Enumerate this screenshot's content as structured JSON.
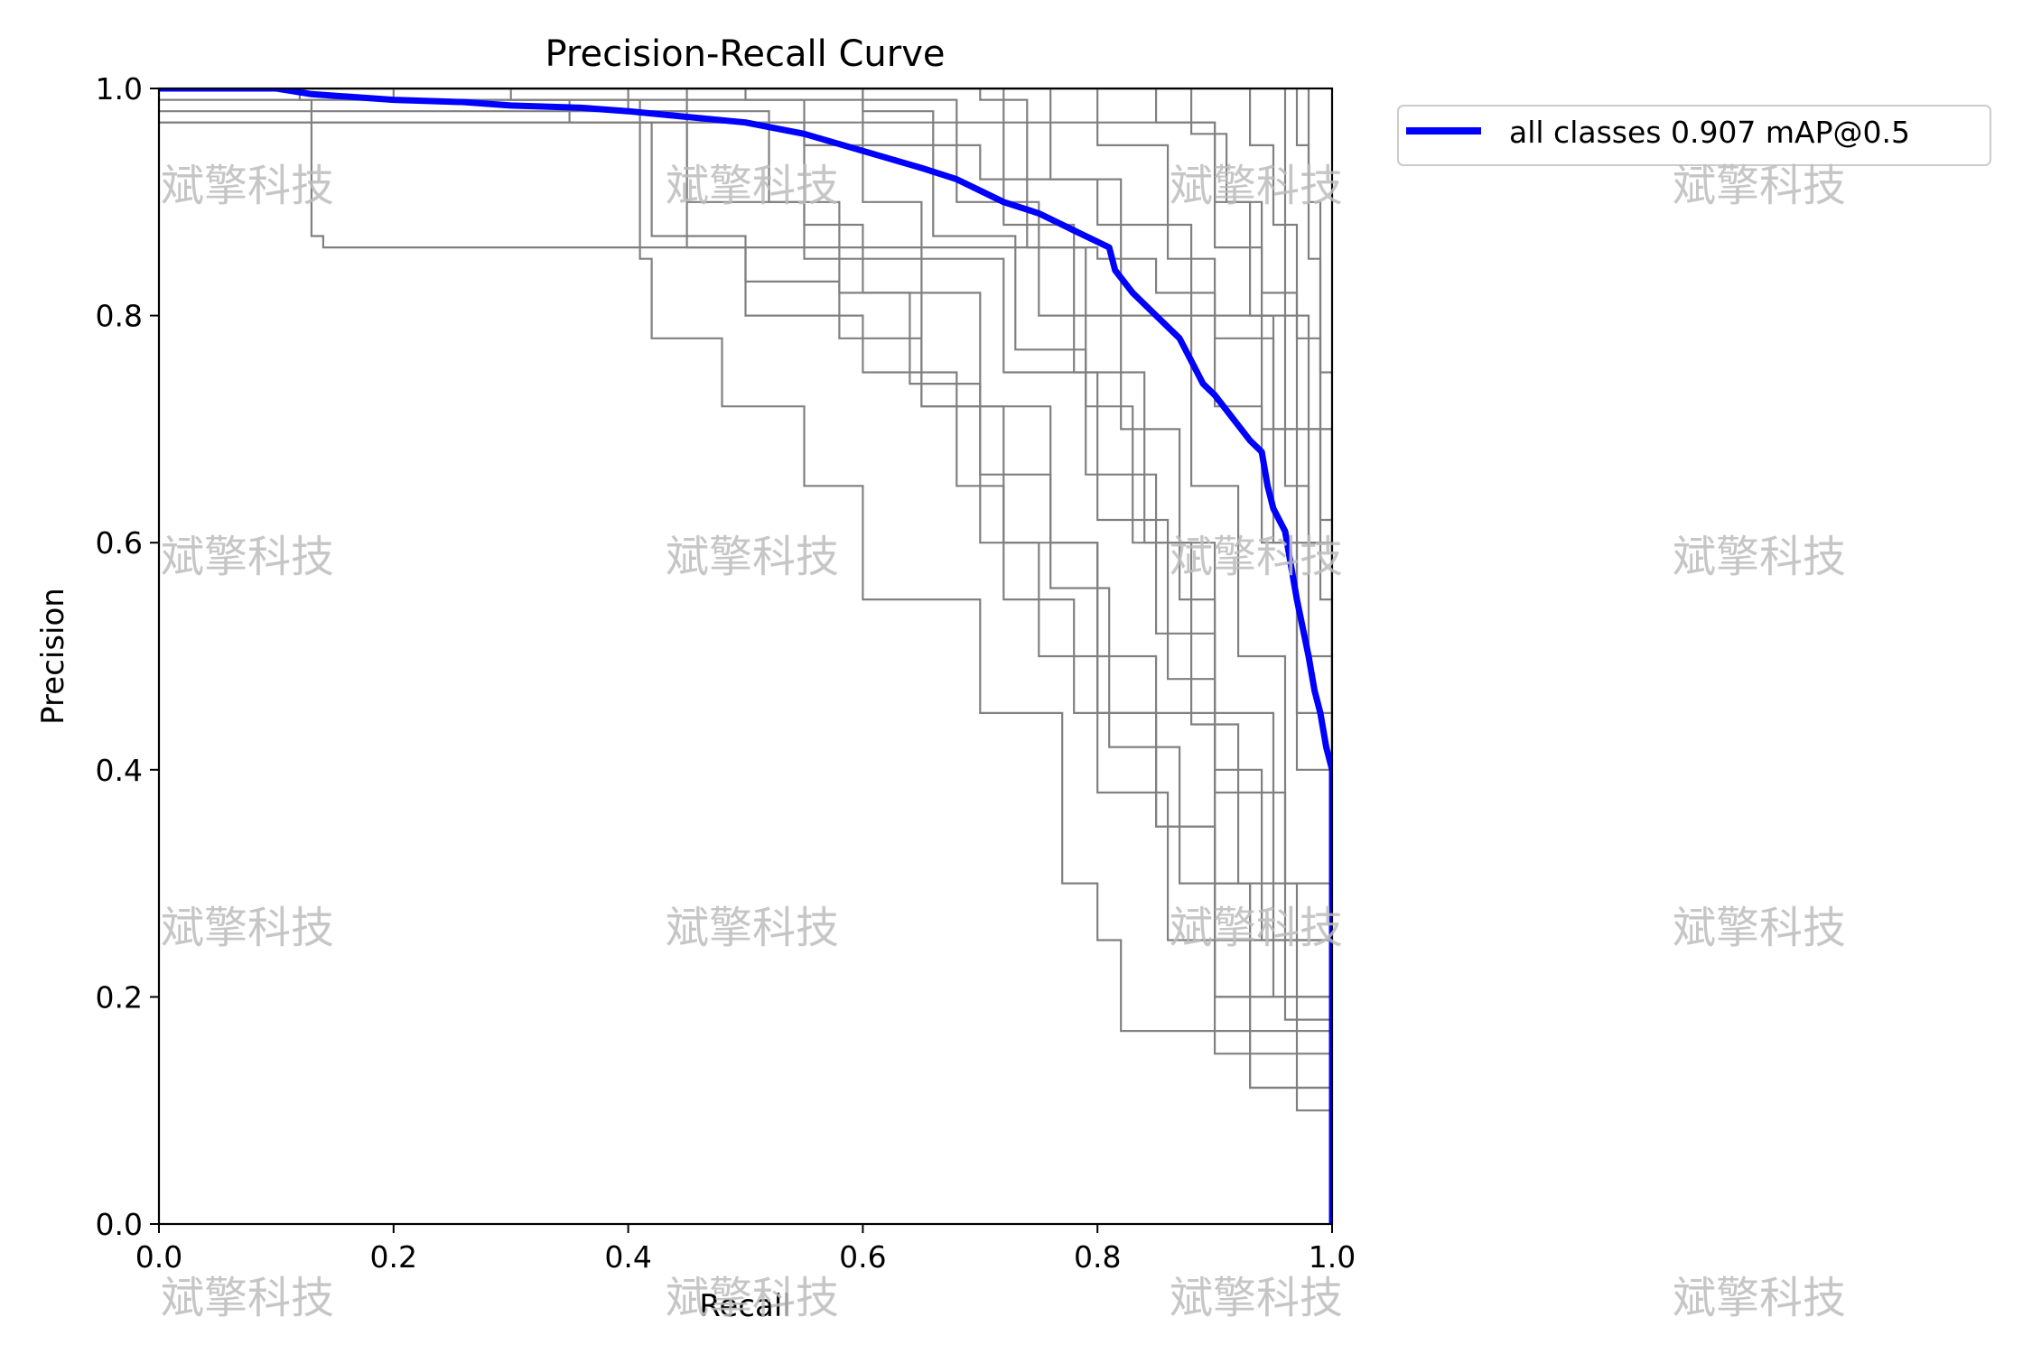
{
  "chart_data": {
    "type": "line",
    "title": "Precision-Recall Curve",
    "xlabel": "Recall",
    "ylabel": "Precision",
    "xlim": [
      0,
      1
    ],
    "ylim": [
      0,
      1
    ],
    "xticks": [
      "0.0",
      "0.2",
      "0.4",
      "0.6",
      "0.8",
      "1.0"
    ],
    "yticks": [
      "0.0",
      "0.2",
      "0.4",
      "0.6",
      "0.8",
      "1.0"
    ],
    "grid": false,
    "legend_position": "outside-top-right",
    "main_series": {
      "name": "all classes 0.907 mAP@0.5",
      "color": "#0000ff",
      "x": [
        0.0,
        0.1,
        0.13,
        0.2,
        0.26,
        0.3,
        0.36,
        0.4,
        0.45,
        0.5,
        0.55,
        0.6,
        0.65,
        0.68,
        0.7,
        0.72,
        0.75,
        0.78,
        0.81,
        0.815,
        0.83,
        0.85,
        0.87,
        0.88,
        0.89,
        0.9,
        0.93,
        0.94,
        0.945,
        0.95,
        0.96,
        0.965,
        0.97,
        0.98,
        0.985,
        0.99,
        0.995,
        1.0,
        1.0
      ],
      "y": [
        1.0,
        1.0,
        0.995,
        0.99,
        0.988,
        0.985,
        0.983,
        0.98,
        0.975,
        0.97,
        0.96,
        0.945,
        0.93,
        0.92,
        0.91,
        0.9,
        0.89,
        0.875,
        0.86,
        0.84,
        0.82,
        0.8,
        0.78,
        0.76,
        0.74,
        0.73,
        0.69,
        0.68,
        0.65,
        0.63,
        0.61,
        0.58,
        0.55,
        0.5,
        0.47,
        0.45,
        0.42,
        0.4,
        0.0
      ]
    },
    "class_series_color": "#808080",
    "class_series": [
      {
        "x": [
          0,
          0.12,
          0.13,
          0.14,
          0.8,
          0.85,
          0.9,
          0.95,
          1.0,
          1.0
        ],
        "y": [
          1.0,
          0.99,
          0.87,
          0.86,
          0.85,
          0.82,
          0.78,
          0.6,
          0.4,
          0.0
        ]
      },
      {
        "x": [
          0,
          0.2,
          0.4,
          0.55,
          0.7,
          0.8,
          0.88,
          0.95,
          1.0,
          1.0
        ],
        "y": [
          0.97,
          0.97,
          0.97,
          0.95,
          0.92,
          0.88,
          0.8,
          0.7,
          0.5,
          0.0
        ]
      },
      {
        "x": [
          0,
          0.1,
          0.2,
          0.35,
          0.45,
          0.55,
          0.65,
          0.72,
          0.8,
          0.9,
          1.0
        ],
        "y": [
          1.0,
          1.0,
          0.99,
          0.98,
          0.9,
          0.85,
          0.72,
          0.6,
          0.45,
          0.2,
          0.0
        ]
      },
      {
        "x": [
          0,
          0.3,
          0.41,
          0.42,
          0.48,
          0.55,
          0.6,
          0.7,
          0.77,
          0.8,
          0.82,
          1.0
        ],
        "y": [
          1.0,
          0.99,
          0.85,
          0.78,
          0.72,
          0.65,
          0.55,
          0.45,
          0.3,
          0.25,
          0.17,
          0.0
        ]
      },
      {
        "x": [
          0,
          0.4,
          0.45,
          0.5,
          0.6,
          0.68,
          0.72,
          0.78,
          0.85,
          0.9,
          1.0
        ],
        "y": [
          1.0,
          0.98,
          0.86,
          0.8,
          0.75,
          0.65,
          0.55,
          0.45,
          0.35,
          0.2,
          0.0
        ]
      },
      {
        "x": [
          0,
          0.5,
          0.55,
          0.6,
          0.7,
          0.76,
          0.8,
          0.85,
          0.9,
          1.0
        ],
        "y": [
          1.0,
          0.99,
          0.88,
          0.82,
          0.72,
          0.6,
          0.5,
          0.35,
          0.25,
          0.0
        ]
      },
      {
        "x": [
          0,
          0.55,
          0.6,
          0.65,
          0.72,
          0.8,
          0.86,
          0.9,
          0.93,
          1.0
        ],
        "y": [
          1.0,
          1.0,
          0.9,
          0.85,
          0.75,
          0.62,
          0.48,
          0.3,
          0.12,
          0.0
        ]
      },
      {
        "x": [
          0,
          0.6,
          0.68,
          0.75,
          0.82,
          0.87,
          0.9,
          0.94,
          1.0
        ],
        "y": [
          1.0,
          0.99,
          0.9,
          0.8,
          0.7,
          0.55,
          0.4,
          0.25,
          0.0
        ]
      },
      {
        "x": [
          0,
          0.65,
          0.72,
          0.78,
          0.84,
          0.9,
          0.95,
          1.0
        ],
        "y": [
          1.0,
          1.0,
          0.88,
          0.75,
          0.6,
          0.45,
          0.2,
          0.0
        ]
      },
      {
        "x": [
          0,
          0.7,
          0.76,
          0.82,
          0.88,
          0.92,
          0.96,
          1.0
        ],
        "y": [
          1.0,
          1.0,
          0.92,
          0.8,
          0.65,
          0.5,
          0.3,
          0.0
        ]
      },
      {
        "x": [
          0,
          0.75,
          0.8,
          0.86,
          0.9,
          0.94,
          0.97,
          1.0
        ],
        "y": [
          1.0,
          1.0,
          0.95,
          0.85,
          0.72,
          0.6,
          0.4,
          0.0
        ]
      },
      {
        "x": [
          0,
          0.8,
          0.85,
          0.9,
          0.93,
          0.96,
          0.98,
          1.0
        ],
        "y": [
          1.0,
          1.0,
          0.97,
          0.9,
          0.8,
          0.65,
          0.5,
          0.0
        ]
      },
      {
        "x": [
          0,
          0.85,
          0.88,
          0.91,
          0.94,
          0.97,
          0.99,
          1.0
        ],
        "y": [
          1.0,
          1.0,
          0.96,
          0.9,
          0.82,
          0.7,
          0.55,
          0.0
        ]
      },
      {
        "x": [
          0,
          0.9,
          0.93,
          0.95,
          0.97,
          0.99,
          1.0
        ],
        "y": [
          1.0,
          1.0,
          0.95,
          0.88,
          0.78,
          0.62,
          0.0
        ]
      },
      {
        "x": [
          0,
          0.95,
          0.97,
          0.98,
          0.99,
          1.0
        ],
        "y": [
          1.0,
          1.0,
          0.95,
          0.85,
          0.7,
          0.0
        ]
      },
      {
        "x": [
          0,
          0.97,
          0.98,
          0.99,
          1.0
        ],
        "y": [
          1.0,
          1.0,
          0.9,
          0.75,
          0.0
        ]
      },
      {
        "x": [
          0,
          0.35,
          0.42,
          0.5,
          0.58,
          0.65,
          0.7,
          0.75,
          0.8,
          0.86,
          0.9,
          1.0
        ],
        "y": [
          0.98,
          0.97,
          0.87,
          0.83,
          0.78,
          0.72,
          0.6,
          0.5,
          0.38,
          0.25,
          0.15,
          0.0
        ]
      },
      {
        "x": [
          0,
          0.45,
          0.52,
          0.58,
          0.64,
          0.7,
          0.76,
          0.81,
          0.87,
          0.93,
          1.0
        ],
        "y": [
          1.0,
          0.98,
          0.9,
          0.82,
          0.74,
          0.66,
          0.56,
          0.42,
          0.3,
          0.12,
          0.0
        ]
      },
      {
        "x": [
          0,
          0.6,
          0.66,
          0.73,
          0.79,
          0.85,
          0.9,
          0.96,
          1.0
        ],
        "y": [
          0.99,
          0.98,
          0.87,
          0.77,
          0.66,
          0.52,
          0.38,
          0.18,
          0.0
        ]
      },
      {
        "x": [
          0,
          0.7,
          0.74,
          0.79,
          0.83,
          0.88,
          0.92,
          0.97,
          1.0
        ],
        "y": [
          1.0,
          0.99,
          0.86,
          0.72,
          0.6,
          0.44,
          0.3,
          0.1,
          0.0
        ]
      },
      {
        "x": [
          0,
          0.85,
          0.9,
          0.94,
          0.97,
          1.0
        ],
        "y": [
          0.97,
          0.97,
          0.86,
          0.7,
          0.45,
          0.0
        ]
      },
      {
        "x": [
          0,
          0.92,
          0.96,
          0.98,
          1.0
        ],
        "y": [
          1.0,
          1.0,
          0.8,
          0.6,
          0.0
        ]
      }
    ]
  },
  "legend": {
    "label": "all classes 0.907 mAP@0.5",
    "color": "#0000ff"
  },
  "watermark": {
    "text": "斌擎科技"
  }
}
